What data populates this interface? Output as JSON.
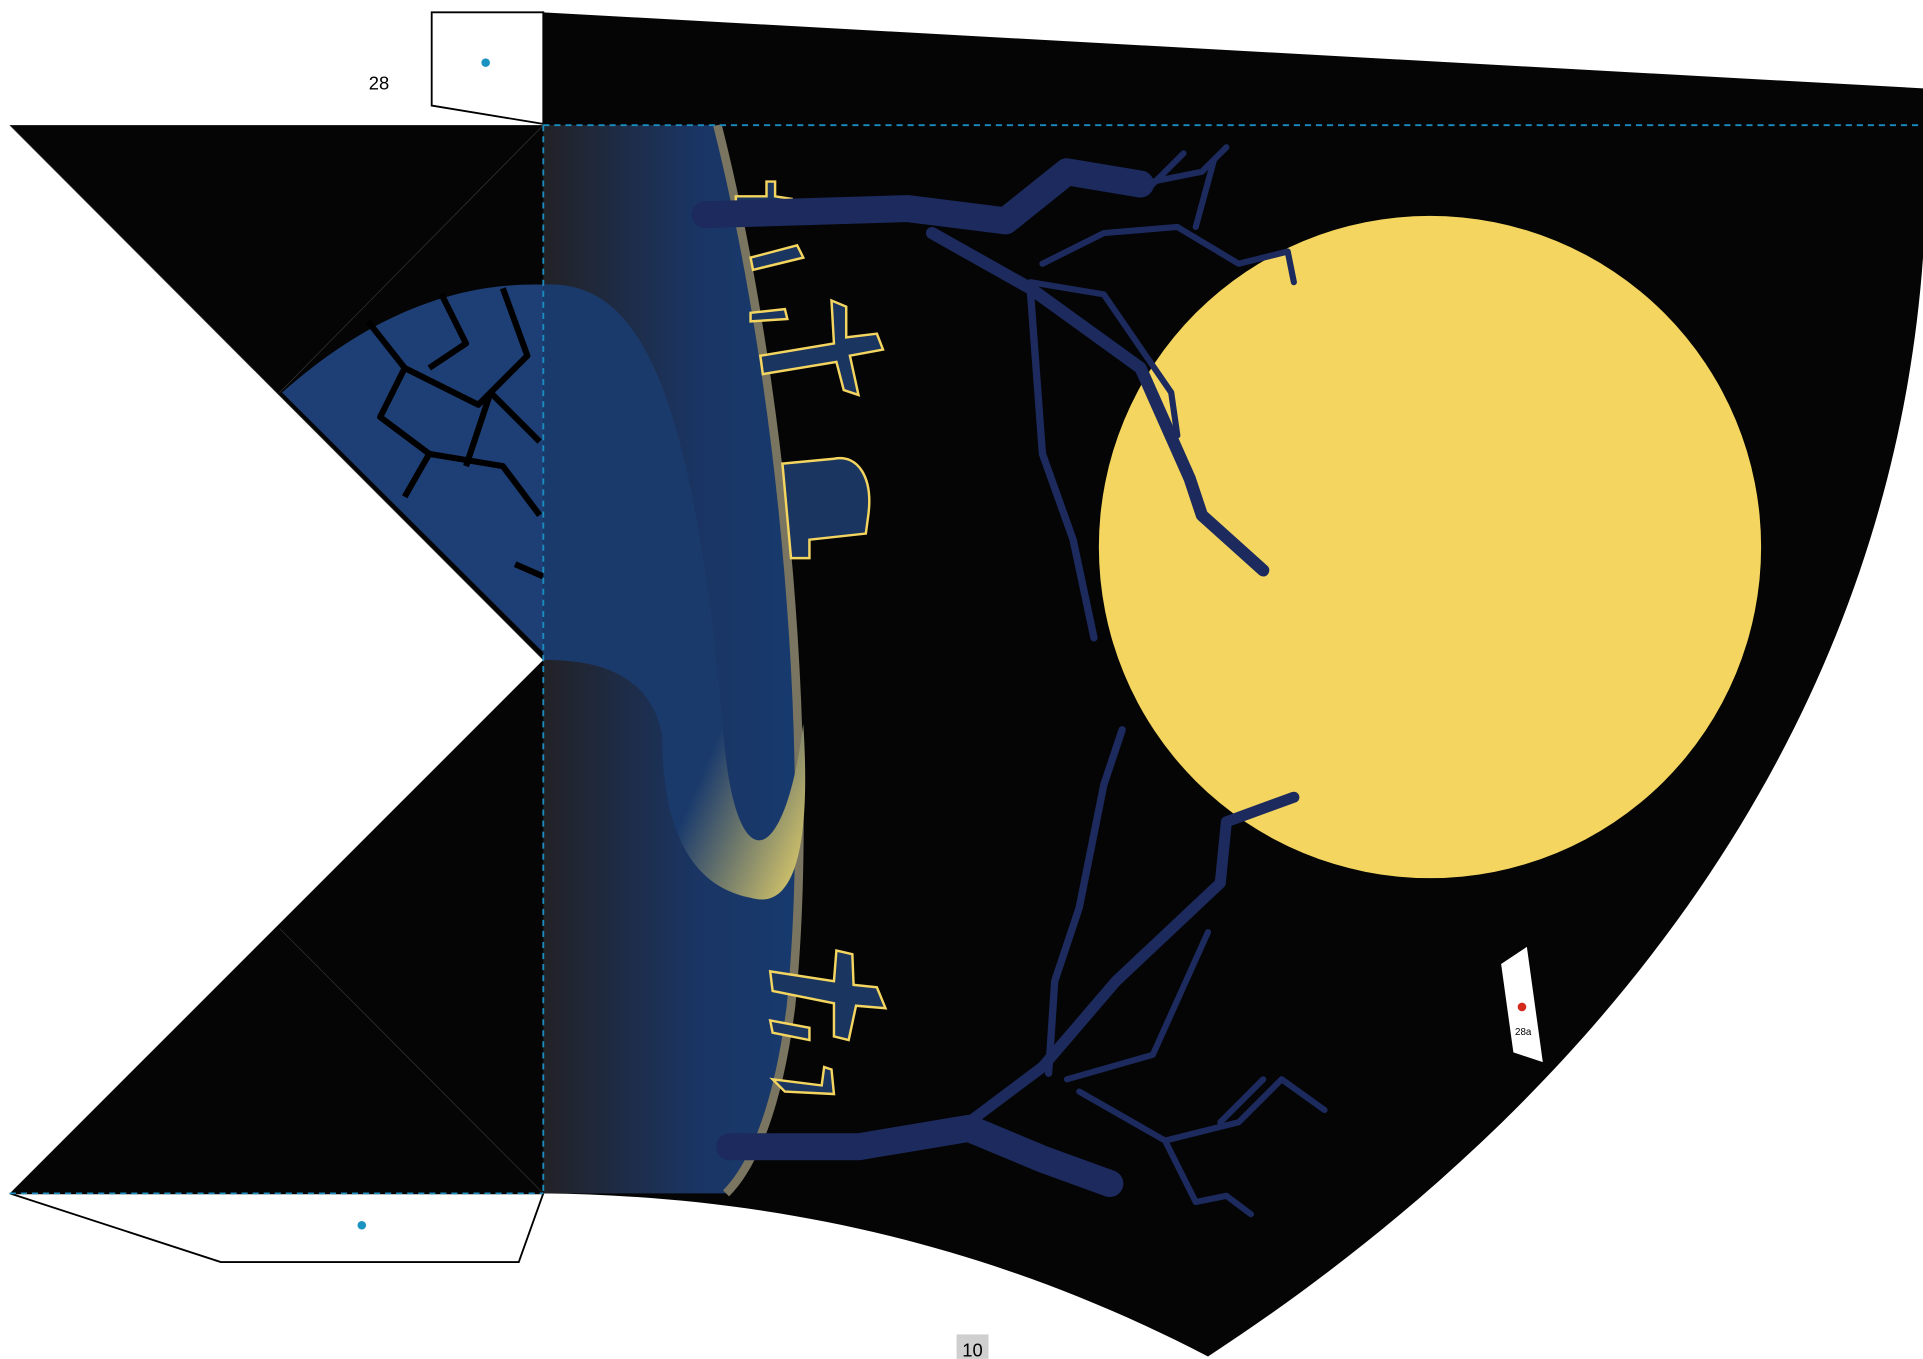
{
  "labels": {
    "top_tab": "28",
    "side_tab": "28a",
    "page_number": "10"
  }
}
